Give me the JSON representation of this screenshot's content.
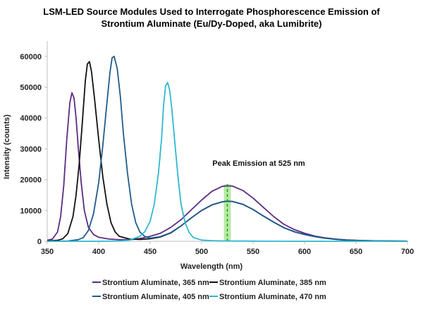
{
  "chart_data": {
    "type": "line",
    "title": [
      "LSM-LED Source Modules Used to Interrogate Phosphorescence Emission of",
      "Strontium Aluminate (Eu/Dy-Doped, aka Lumibrite)"
    ],
    "xlabel": "Wavelength (nm)",
    "ylabel": "Intensity (counts)",
    "xlim": [
      350,
      700
    ],
    "ylim": [
      0,
      65000
    ],
    "x_ticks": [
      350,
      400,
      450,
      500,
      550,
      600,
      650,
      700
    ],
    "y_ticks": [
      0,
      10000,
      20000,
      30000,
      40000,
      50000,
      60000
    ],
    "grid": false,
    "legend_position": "bottom",
    "annotation": {
      "text": "Peak Emission at 525 nm",
      "x": 525,
      "color": "#7ed957"
    },
    "series": [
      {
        "name": "Strontium Aluminate, 365 nm",
        "color": "#5b2c83",
        "x": [
          350,
          355,
          360,
          363,
          366,
          369,
          372,
          374,
          376,
          378,
          380,
          383,
          386,
          390,
          395,
          400,
          410,
          420,
          430,
          440,
          450,
          460,
          470,
          480,
          490,
          500,
          510,
          520,
          525,
          530,
          540,
          550,
          560,
          570,
          580,
          590,
          600,
          610,
          620,
          630,
          640,
          650,
          660,
          680,
          700
        ],
        "y": [
          300,
          700,
          3000,
          8000,
          18000,
          33000,
          45000,
          48200,
          46500,
          40000,
          31000,
          19000,
          10000,
          4500,
          2200,
          1300,
          700,
          500,
          500,
          900,
          1600,
          2600,
          4500,
          7000,
          10200,
          13400,
          16200,
          17800,
          18000,
          17900,
          16500,
          14000,
          11000,
          8000,
          5500,
          3800,
          2600,
          1700,
          1100,
          700,
          450,
          300,
          200,
          100,
          50
        ]
      },
      {
        "name": "Strontium Aluminate, 385 nm",
        "color": "#111111",
        "x": [
          350,
          360,
          365,
          370,
          375,
          378,
          381,
          384,
          387,
          389,
          391,
          393,
          396,
          400,
          404,
          408,
          412,
          416,
          420,
          430,
          440,
          450,
          460,
          470,
          480,
          490,
          500,
          510,
          520,
          525,
          530,
          540,
          550,
          560,
          570,
          580,
          590,
          600,
          610,
          620,
          630,
          640,
          650,
          660,
          680,
          700
        ],
        "y": [
          100,
          300,
          800,
          2500,
          8000,
          15000,
          25000,
          38000,
          52000,
          57500,
          58300,
          55000,
          46000,
          33000,
          21000,
          12000,
          6000,
          3000,
          1600,
          700,
          600,
          800,
          1400,
          2700,
          5000,
          7600,
          10000,
          11800,
          12800,
          13000,
          12900,
          12000,
          10300,
          8200,
          6200,
          4400,
          3100,
          2200,
          1500,
          1000,
          650,
          400,
          250,
          150,
          70,
          30
        ]
      },
      {
        "name": "Strontium Aluminate, 405 nm",
        "color": "#1f5c8b",
        "x": [
          350,
          370,
          380,
          385,
          390,
          395,
          400,
          404,
          408,
          411,
          413,
          415,
          418,
          421,
          424,
          428,
          432,
          436,
          440,
          445,
          450,
          460,
          470,
          480,
          490,
          500,
          510,
          520,
          525,
          530,
          540,
          550,
          560,
          570,
          580,
          590,
          600,
          610,
          620,
          630,
          640,
          650,
          660,
          680,
          700
        ],
        "y": [
          0,
          100,
          500,
          1200,
          3500,
          9000,
          19000,
          31000,
          45000,
          55000,
          59500,
          60000,
          56000,
          47000,
          35000,
          22000,
          12000,
          6000,
          3000,
          1500,
          1000,
          1500,
          2800,
          5000,
          7600,
          10000,
          11800,
          12800,
          13000,
          12900,
          12000,
          10300,
          8200,
          6200,
          4400,
          3100,
          2200,
          1500,
          1000,
          650,
          400,
          250,
          150,
          70,
          30
        ]
      },
      {
        "name": "Strontium Aluminate, 470 nm",
        "color": "#2eb8d1",
        "x": [
          350,
          400,
          420,
          430,
          440,
          445,
          450,
          454,
          458,
          461,
          463,
          465,
          467,
          469,
          471,
          474,
          477,
          480,
          484,
          488,
          492,
          500,
          510,
          520,
          530,
          540,
          550,
          560,
          570,
          580,
          590,
          600,
          610,
          620,
          630,
          640,
          650,
          660,
          680,
          700
        ],
        "y": [
          0,
          0,
          100,
          400,
          1600,
          3200,
          6500,
          12000,
          22000,
          33000,
          44000,
          50500,
          51500,
          49000,
          43000,
          32000,
          21000,
          12000,
          6000,
          2800,
          1200,
          400,
          200,
          120,
          80,
          60,
          40,
          30,
          20,
          10,
          0,
          0,
          0,
          0,
          0,
          0,
          0,
          0,
          0,
          0
        ]
      }
    ]
  }
}
